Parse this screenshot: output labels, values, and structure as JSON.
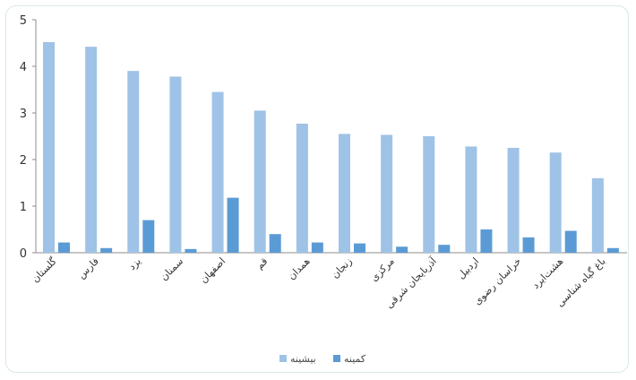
{
  "chart_data": {
    "type": "bar",
    "categories": [
      "گلستان",
      "فارس",
      "یزد",
      "سمنان",
      "اصفهان",
      "قم",
      "همدان",
      "زنجان",
      "مرکزی",
      "آذربایجان شرقی",
      "اردبیل",
      "خراسان رضوی",
      "هشت‌ایرد",
      "باغ گیاه شناسی"
    ],
    "series": [
      {
        "name": "بیشینه",
        "color": "#9fc3e6",
        "values": [
          4.52,
          4.42,
          3.9,
          3.78,
          3.45,
          3.05,
          2.77,
          2.55,
          2.53,
          2.5,
          2.28,
          2.25,
          2.15,
          1.6
        ]
      },
      {
        "name": "کمینه",
        "color": "#5b9bd5",
        "values": [
          0.22,
          0.1,
          0.7,
          0.08,
          1.18,
          0.4,
          0.22,
          0.2,
          0.13,
          0.17,
          0.5,
          0.33,
          0.47,
          0.1
        ]
      }
    ],
    "ylim": [
      0,
      5
    ],
    "yticks": [
      0,
      1,
      2,
      3,
      4,
      5
    ],
    "grid": false,
    "legend": "bottom"
  }
}
